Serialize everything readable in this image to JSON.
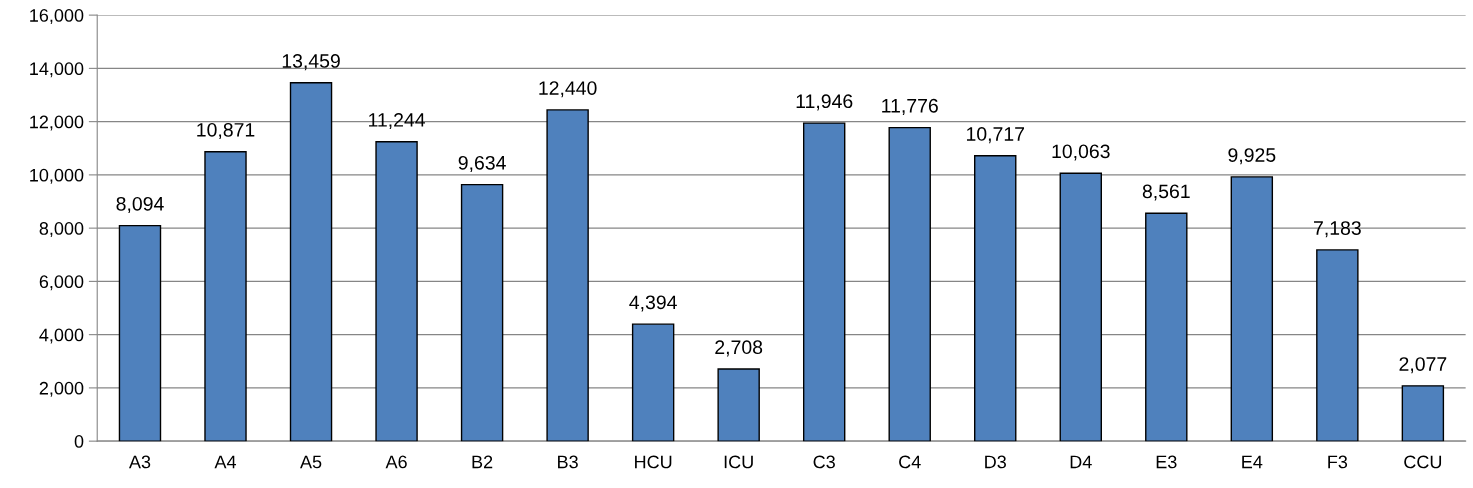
{
  "chart_data": {
    "type": "bar",
    "categories": [
      "A3",
      "A4",
      "A5",
      "A6",
      "B2",
      "B3",
      "HCU",
      "ICU",
      "C3",
      "C4",
      "D3",
      "D4",
      "E3",
      "E4",
      "F3",
      "CCU"
    ],
    "values": [
      8094,
      10871,
      13459,
      11244,
      9634,
      12440,
      4394,
      2708,
      11946,
      11776,
      10717,
      10063,
      8561,
      9925,
      7183,
      2077
    ],
    "value_labels": [
      "8,094",
      "10,871",
      "13,459",
      "11,244",
      "9,634",
      "12,440",
      "4,394",
      "2,708",
      "11,946",
      "11,776",
      "10,717",
      "10,063",
      "8,561",
      "9,925",
      "7,183",
      "2,077"
    ],
    "color": "#4f81bd",
    "ylim": [
      0,
      16000
    ],
    "yticks": [
      0,
      {
        "value": 2000,
        "label": "2,000"
      },
      {
        "value": 4000,
        "label": "4,000"
      },
      {
        "value": 6000,
        "label": "6,000"
      },
      {
        "value": 8000,
        "label": "8,000"
      },
      {
        "value": 10000,
        "label": "10,000"
      },
      {
        "value": 12000,
        "label": "12,000"
      },
      {
        "value": 14000,
        "label": "14,000"
      },
      {
        "value": 16000,
        "label": "16,000"
      }
    ],
    "grid": "y"
  }
}
